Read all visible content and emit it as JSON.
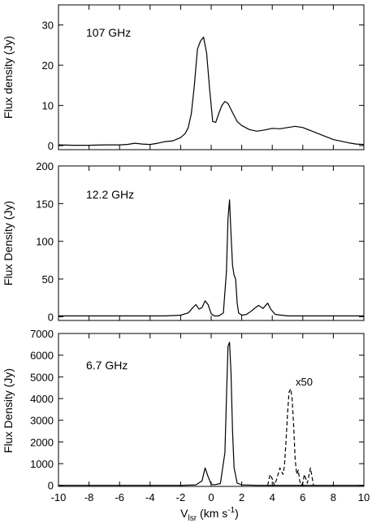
{
  "chart_data": [
    {
      "type": "line",
      "annotation": "107 GHz",
      "ylabel": "Flux density (Jy)",
      "xlim": [
        -10,
        10
      ],
      "ylim": [
        -1,
        35
      ],
      "x_ticks": [
        -10,
        -8,
        -6,
        -4,
        -2,
        0,
        2,
        4,
        6,
        8,
        10
      ],
      "y_ticks": [
        0,
        10,
        20,
        30
      ],
      "y_tick_labels": [
        "0",
        "10",
        "20",
        "30"
      ],
      "series": [
        {
          "style": "solid",
          "x": [
            -10,
            -9,
            -8,
            -7,
            -6,
            -5.5,
            -5,
            -4.5,
            -4,
            -3.5,
            -3,
            -2.5,
            -2,
            -1.7,
            -1.5,
            -1.3,
            -1.1,
            -0.9,
            -0.7,
            -0.5,
            -0.3,
            -0.1,
            0.1,
            0.3,
            0.5,
            0.7,
            0.9,
            1.1,
            1.3,
            1.5,
            1.7,
            2.0,
            2.5,
            3.0,
            3.5,
            4.0,
            4.5,
            5.0,
            5.5,
            6.0,
            7,
            8,
            9,
            9.5,
            10
          ],
          "y": [
            0.2,
            0.1,
            0.1,
            0.2,
            0.2,
            0.3,
            0.6,
            0.4,
            0.3,
            0.6,
            1.0,
            1.2,
            2.0,
            3.0,
            4.5,
            8.0,
            15.0,
            24.0,
            26.0,
            27.0,
            23.0,
            14.0,
            6.0,
            5.8,
            8.0,
            10.0,
            11.0,
            10.5,
            9.0,
            7.5,
            6.0,
            5.0,
            4.0,
            3.6,
            3.9,
            4.3,
            4.2,
            4.5,
            4.8,
            4.5,
            3.0,
            1.5,
            0.7,
            0.4,
            0.3
          ]
        }
      ]
    },
    {
      "type": "line",
      "annotation": "12.2 GHz",
      "ylabel": "Flux Density (Jy)",
      "xlim": [
        -10,
        10
      ],
      "ylim": [
        -5,
        200
      ],
      "x_ticks": [
        -10,
        -8,
        -6,
        -4,
        -2,
        0,
        2,
        4,
        6,
        8,
        10
      ],
      "y_ticks": [
        0,
        50,
        100,
        150,
        200
      ],
      "y_tick_labels": [
        "0",
        "50",
        "100",
        "150",
        "200"
      ],
      "series": [
        {
          "style": "solid",
          "x": [
            -10,
            -9,
            -8,
            -7,
            -6,
            -5,
            -4,
            -3,
            -2,
            -1.5,
            -1.2,
            -1.0,
            -0.8,
            -0.6,
            -0.4,
            -0.2,
            0.0,
            0.2,
            0.5,
            0.8,
            1.0,
            1.1,
            1.2,
            1.3,
            1.4,
            1.5,
            1.6,
            1.7,
            1.8,
            2.0,
            2.3,
            2.6,
            2.9,
            3.1,
            3.4,
            3.7,
            3.9,
            4.2,
            5,
            6,
            7,
            8,
            9,
            10
          ],
          "y": [
            1,
            1,
            1,
            1,
            1,
            1,
            1,
            1,
            2,
            5,
            12,
            16,
            10,
            12,
            21,
            16,
            4,
            1,
            1,
            5,
            60,
            130,
            155,
            110,
            68,
            55,
            50,
            18,
            5,
            2,
            3,
            7,
            12,
            15,
            11,
            18,
            10,
            3,
            1,
            1,
            1,
            1,
            1,
            1
          ]
        }
      ]
    },
    {
      "type": "line",
      "annotation": "6.7 GHz",
      "ylabel": "Flux Density (Jy)",
      "xlabel_main": "V",
      "xlabel_sub": "lsr",
      "xlabel_units": "(km s",
      "xlabel_exp": "-1",
      "xlim": [
        -10,
        10
      ],
      "ylim": [
        -50,
        7000
      ],
      "x_ticks": [
        -10,
        -8,
        -6,
        -4,
        -2,
        0,
        2,
        4,
        6,
        8,
        10
      ],
      "x_tick_labels": [
        "-10",
        "-8",
        "-6",
        "-4",
        "-2",
        "0",
        "2",
        "4",
        "6",
        "8",
        "10"
      ],
      "y_ticks": [
        0,
        1000,
        2000,
        3000,
        4000,
        5000,
        6000,
        7000
      ],
      "y_tick_labels": [
        "0",
        "1000",
        "2000",
        "3000",
        "4000",
        "5000",
        "6000",
        "7000"
      ],
      "series_label": "x50",
      "series": [
        {
          "style": "solid",
          "x": [
            -10,
            -6,
            -2,
            -1.0,
            -0.6,
            -0.4,
            -0.2,
            0.0,
            0.2,
            0.6,
            0.9,
            1.0,
            1.1,
            1.2,
            1.3,
            1.4,
            1.5,
            1.7,
            2.0,
            3,
            4,
            6,
            8,
            10
          ],
          "y": [
            0,
            0,
            0,
            20,
            200,
            800,
            400,
            50,
            20,
            80,
            1500,
            4000,
            6400,
            6600,
            5200,
            2500,
            800,
            100,
            20,
            0,
            0,
            0,
            0,
            0
          ]
        },
        {
          "style": "dashed",
          "x": [
            3.7,
            3.85,
            4.0,
            4.15,
            4.3,
            4.5,
            4.7,
            4.8,
            4.9,
            5.0,
            5.1,
            5.2,
            5.3,
            5.4,
            5.5,
            5.6,
            5.7,
            5.8,
            5.9,
            6.0,
            6.1,
            6.2,
            6.3,
            6.5,
            6.6,
            6.7
          ],
          "y": [
            0,
            500,
            300,
            0,
            300,
            800,
            500,
            900,
            2000,
            3300,
            4300,
            4450,
            4000,
            2800,
            1200,
            500,
            700,
            200,
            0,
            100,
            500,
            300,
            100,
            800,
            400,
            0
          ]
        }
      ]
    }
  ]
}
